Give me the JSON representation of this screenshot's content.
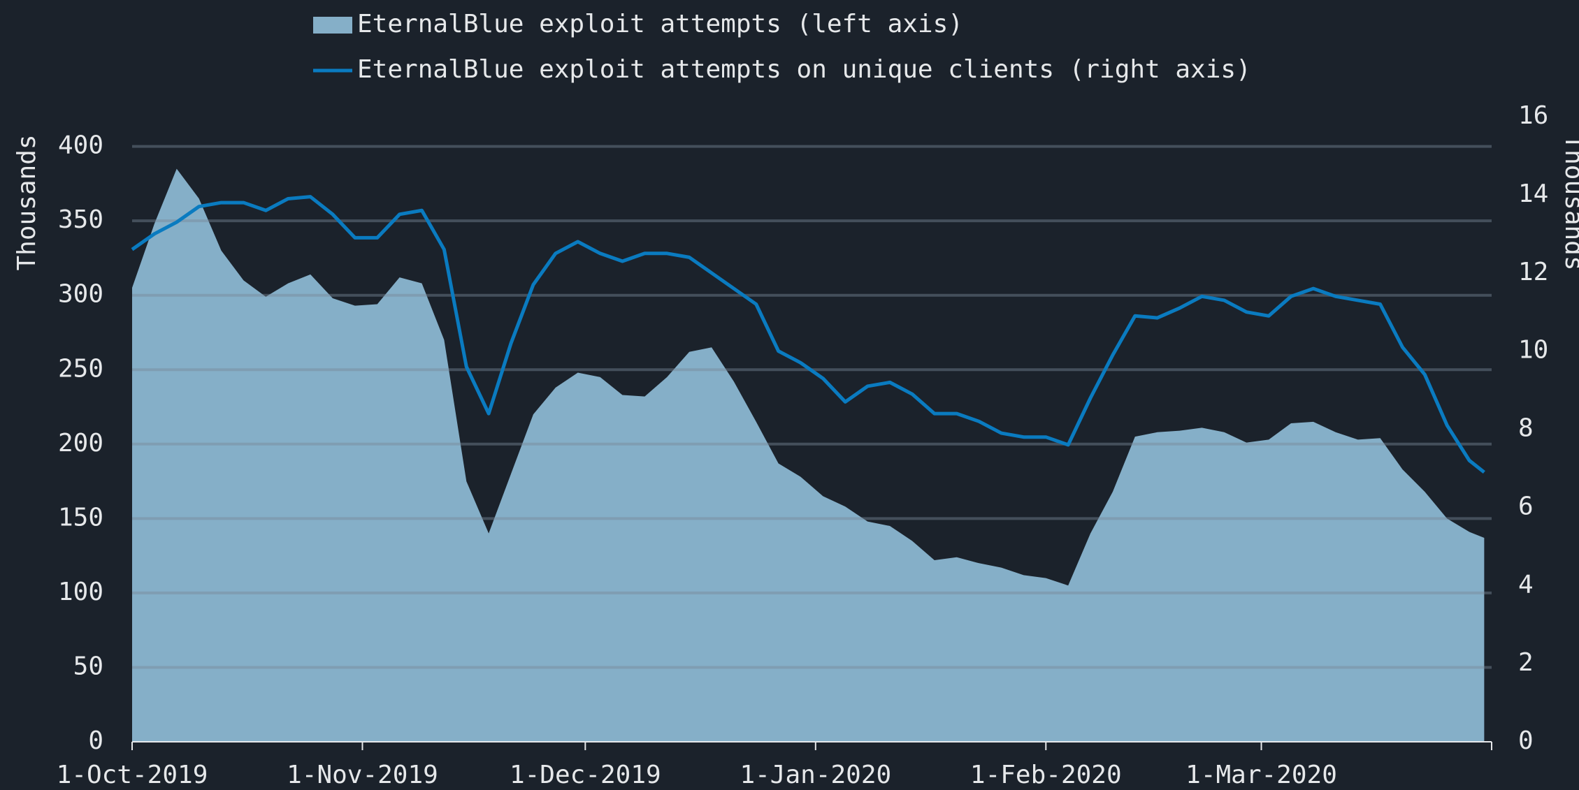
{
  "chart_data": {
    "type": "area-line",
    "legend": "top",
    "series": [
      {
        "name": "EternalBlue exploit attempts (left axis)",
        "type": "area",
        "color": "#85afc8",
        "axis": "y",
        "values": [
          305,
          348,
          385,
          365,
          330,
          310,
          299,
          308,
          314,
          298,
          293,
          294,
          312,
          308,
          270,
          175,
          140,
          180,
          220,
          238,
          248,
          245,
          233,
          232,
          245,
          262,
          265,
          242,
          215,
          187,
          178,
          165,
          158,
          148,
          145,
          135,
          122,
          124,
          120,
          117,
          112,
          110,
          105,
          140,
          168,
          205,
          208,
          209,
          211,
          208,
          201,
          203,
          214,
          215,
          208,
          203,
          204,
          183,
          168,
          150,
          141,
          137
        ]
      },
      {
        "name": "EternalBlue exploit attempts on unique clients (right axis)",
        "type": "line",
        "color": "#0a7bc0",
        "axis": "y2",
        "values": [
          12.6,
          13.0,
          13.3,
          13.7,
          13.8,
          13.8,
          13.6,
          13.9,
          13.95,
          13.5,
          12.9,
          12.9,
          13.5,
          13.6,
          12.6,
          9.6,
          8.4,
          10.2,
          11.7,
          12.5,
          12.8,
          12.5,
          12.3,
          12.5,
          12.5,
          12.4,
          12.0,
          11.6,
          11.2,
          10.0,
          9.7,
          9.3,
          8.7,
          9.1,
          9.2,
          8.9,
          8.4,
          8.4,
          8.2,
          7.9,
          7.8,
          7.8,
          7.6,
          8.8,
          9.9,
          10.9,
          10.85,
          11.1,
          11.4,
          11.3,
          11.0,
          10.9,
          11.4,
          11.6,
          11.4,
          11.3,
          11.2,
          10.1,
          9.4,
          8.1,
          7.2,
          6.9
        ]
      }
    ],
    "x": [
      "2019-10-01",
      "2019-10-04",
      "2019-10-07",
      "2019-10-10",
      "2019-10-13",
      "2019-10-16",
      "2019-10-19",
      "2019-10-22",
      "2019-10-25",
      "2019-10-28",
      "2019-10-31",
      "2019-11-03",
      "2019-11-06",
      "2019-11-09",
      "2019-11-12",
      "2019-11-15",
      "2019-11-18",
      "2019-11-21",
      "2019-11-24",
      "2019-11-27",
      "2019-11-30",
      "2019-12-03",
      "2019-12-06",
      "2019-12-09",
      "2019-12-12",
      "2019-12-15",
      "2019-12-18",
      "2019-12-21",
      "2019-12-24",
      "2019-12-27",
      "2019-12-30",
      "2020-01-02",
      "2020-01-05",
      "2020-01-08",
      "2020-01-11",
      "2020-01-14",
      "2020-01-17",
      "2020-01-20",
      "2020-01-23",
      "2020-01-26",
      "2020-01-29",
      "2020-02-01",
      "2020-02-04",
      "2020-02-07",
      "2020-02-10",
      "2020-02-13",
      "2020-02-16",
      "2020-02-19",
      "2020-02-22",
      "2020-02-25",
      "2020-02-28",
      "2020-03-02",
      "2020-03-05",
      "2020-03-08",
      "2020-03-11",
      "2020-03-14",
      "2020-03-17",
      "2020-03-20",
      "2020-03-23",
      "2020-03-26",
      "2020-03-29",
      "2020-03-31"
    ],
    "xlim": [
      "2019-10-01",
      "2020-04-01"
    ],
    "xticks": [
      {
        "value": "2019-10-01",
        "label": "1-Oct-2019"
      },
      {
        "value": "2019-11-01",
        "label": "1-Nov-2019"
      },
      {
        "value": "2019-12-01",
        "label": "1-Dec-2019"
      },
      {
        "value": "2020-01-01",
        "label": "1-Jan-2020"
      },
      {
        "value": "2020-02-01",
        "label": "1-Feb-2020"
      },
      {
        "value": "2020-03-01",
        "label": "1-Mar-2020"
      }
    ],
    "ylabel": "Thousands",
    "y2label": "Thousands",
    "ylim": [
      0,
      420
    ],
    "yticks": [
      0,
      50,
      100,
      150,
      200,
      250,
      300,
      350,
      400
    ],
    "y2lim": [
      0,
      16
    ],
    "y2ticks": [
      0,
      2,
      4,
      6,
      8,
      10,
      12,
      14,
      16
    ],
    "grid": true
  }
}
